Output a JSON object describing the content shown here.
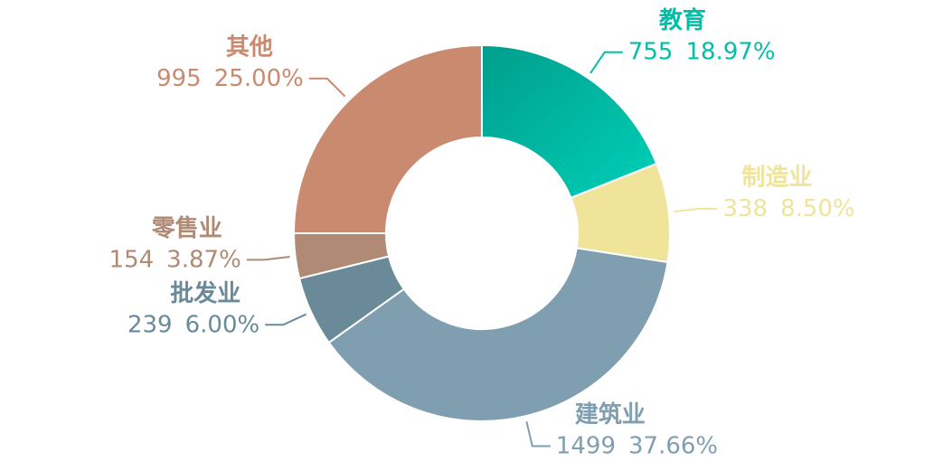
{
  "chart_data": {
    "type": "donut",
    "categories": [
      "教育",
      "制造业",
      "建筑业",
      "批发业",
      "零售业",
      "其他"
    ],
    "values": [
      755,
      338,
      1499,
      239,
      154,
      995
    ],
    "value_labels": [
      "755",
      "338",
      "1499",
      "239",
      "154",
      "995"
    ],
    "percent_labels": [
      "18.97%",
      "8.50%",
      "37.66%",
      "6.00%",
      "3.87%",
      "25.00%"
    ],
    "colors": [
      "#00bfa8",
      "#efe49a",
      "#7f9fb0",
      "#6a8a9a",
      "#b08a74",
      "#c98a70"
    ]
  }
}
